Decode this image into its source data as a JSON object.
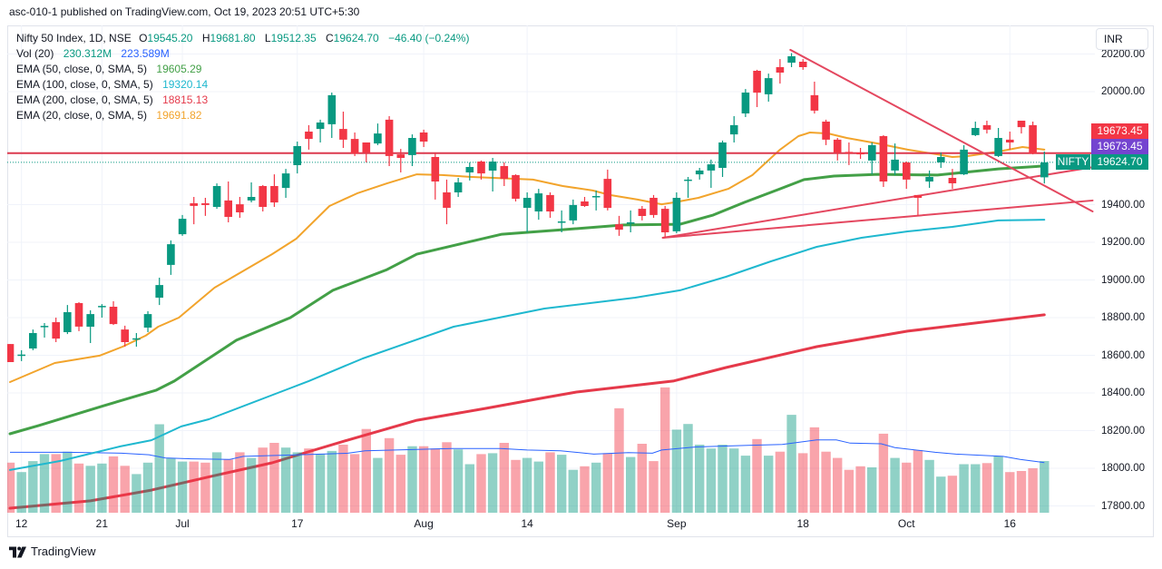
{
  "header": {
    "publish_text": "asc-010-1 published on TradingView.com, Oct 19, 2023 20:51 UTC+5:30"
  },
  "legend": {
    "ohlc": [
      {
        "k": "O",
        "v": "19545.20"
      },
      {
        "k": "H",
        "v": "19681.80"
      },
      {
        "k": "L",
        "v": "19512.35"
      },
      {
        "k": "C",
        "v": "19624.70"
      }
    ],
    "change": "−46.40 (−0.24%)"
  },
  "currency": "INR",
  "footer": {
    "brand": "TradingView",
    "logo_icon": "tradingview-logo"
  },
  "chart_data": {
    "type": "candlestick",
    "title": "Nifty 50 Index, 1D, NSE",
    "xlabel": "",
    "ylabel": "",
    "ylim": [
      17764,
      20342
    ],
    "grid": true,
    "x_ticks": [
      {
        "label": "12",
        "index": 1
      },
      {
        "label": "21",
        "index": 8
      },
      {
        "label": "Jul",
        "index": 15
      },
      {
        "label": "17",
        "index": 25
      },
      {
        "label": "Aug",
        "index": 36
      },
      {
        "label": "14",
        "index": 45
      },
      {
        "label": "Sep",
        "index": 58
      },
      {
        "label": "18",
        "index": 69
      },
      {
        "label": "Oct",
        "index": 78
      },
      {
        "label": "16",
        "index": 87
      }
    ],
    "y_ticks": [
      "20200.00",
      "20000.00",
      "19400.00",
      "19200.00",
      "19000.00",
      "18800.00",
      "18600.00",
      "18400.00",
      "18200.00",
      "18000.00",
      "17800.00"
    ],
    "colors": {
      "up": "#089981",
      "down": "#f23645",
      "volume_up": "rgba(8,153,129,0.45)",
      "volume_down": "rgba(242,54,69,0.45)",
      "volume_ma": "#2962ff",
      "last_price_line": "#089981"
    },
    "candles_format": [
      "open",
      "high",
      "low",
      "close"
    ],
    "candles": [
      [
        18660,
        18660,
        18564,
        18564
      ],
      [
        18600,
        18627,
        18569,
        18604
      ],
      [
        18636,
        18737,
        18627,
        18718
      ],
      [
        18750,
        18771,
        18694,
        18756
      ],
      [
        18776,
        18800,
        18670,
        18689
      ],
      [
        18723,
        18867,
        18713,
        18829
      ],
      [
        18877,
        18882,
        18728,
        18752
      ],
      [
        18752,
        18839,
        18665,
        18819
      ],
      [
        18858,
        18872,
        18800,
        18862
      ],
      [
        18858,
        18887,
        18761,
        18766
      ],
      [
        18737,
        18757,
        18646,
        18670
      ],
      [
        18685,
        18718,
        18646,
        18690
      ],
      [
        18747,
        18834,
        18723,
        18819
      ],
      [
        18906,
        19012,
        18867,
        18973
      ],
      [
        19080,
        19210,
        19027,
        19190
      ],
      [
        19243,
        19345,
        19234,
        19325
      ],
      [
        19407,
        19441,
        19296,
        19393
      ],
      [
        19407,
        19436,
        19340,
        19398
      ],
      [
        19388,
        19513,
        19378,
        19499
      ],
      [
        19422,
        19523,
        19306,
        19335
      ],
      [
        19402,
        19441,
        19330,
        19359
      ],
      [
        19422,
        19518,
        19412,
        19441
      ],
      [
        19499,
        19504,
        19364,
        19388
      ],
      [
        19499,
        19561,
        19388,
        19412
      ],
      [
        19489,
        19590,
        19436,
        19566
      ],
      [
        19610,
        19735,
        19566,
        19711
      ],
      [
        19788,
        19822,
        19692,
        19749
      ],
      [
        19802,
        19851,
        19730,
        19836
      ],
      [
        19827,
        19995,
        19754,
        19981
      ],
      [
        19802,
        19894,
        19701,
        19745
      ],
      [
        19749,
        19783,
        19658,
        19672
      ],
      [
        19730,
        19730,
        19624,
        19677
      ],
      [
        19725,
        19831,
        19716,
        19778
      ],
      [
        19851,
        19870,
        19605,
        19658
      ],
      [
        19667,
        19696,
        19571,
        19648
      ],
      [
        19663,
        19773,
        19605,
        19754
      ],
      [
        19783,
        19798,
        19706,
        19735
      ],
      [
        19653,
        19672,
        19427,
        19523
      ],
      [
        19465,
        19533,
        19296,
        19383
      ],
      [
        19465,
        19542,
        19441,
        19518
      ],
      [
        19571,
        19624,
        19528,
        19600
      ],
      [
        19629,
        19634,
        19533,
        19566
      ],
      [
        19581,
        19648,
        19470,
        19629
      ],
      [
        19605,
        19624,
        19499,
        19537
      ],
      [
        19557,
        19561,
        19417,
        19431
      ],
      [
        19383,
        19465,
        19253,
        19436
      ],
      [
        19364,
        19484,
        19320,
        19460
      ],
      [
        19451,
        19465,
        19330,
        19364
      ],
      [
        19306,
        19369,
        19253,
        19311
      ],
      [
        19316,
        19427,
        19296,
        19398
      ],
      [
        19417,
        19441,
        19388,
        19393
      ],
      [
        19441,
        19475,
        19369,
        19446
      ],
      [
        19537,
        19586,
        19369,
        19383
      ],
      [
        19296,
        19340,
        19234,
        19267
      ],
      [
        19301,
        19369,
        19253,
        19306
      ],
      [
        19378,
        19393,
        19316,
        19340
      ],
      [
        19436,
        19451,
        19330,
        19345
      ],
      [
        19378,
        19393,
        19224,
        19253
      ],
      [
        19258,
        19465,
        19248,
        19436
      ],
      [
        19528,
        19547,
        19436,
        19533
      ],
      [
        19561,
        19595,
        19533,
        19581
      ],
      [
        19581,
        19639,
        19489,
        19614
      ],
      [
        19595,
        19740,
        19547,
        19730
      ],
      [
        19773,
        19870,
        19730,
        19822
      ],
      [
        19884,
        20014,
        19865,
        19995
      ],
      [
        20111,
        20116,
        19918,
        19995
      ],
      [
        19986,
        20096,
        19947,
        20072
      ],
      [
        20130,
        20173,
        20043,
        20101
      ],
      [
        20154,
        20205,
        20130,
        20188
      ],
      [
        20159,
        20173,
        20116,
        20130
      ],
      [
        19981,
        20053,
        19884,
        19899
      ],
      [
        19841,
        19851,
        19716,
        19745
      ],
      [
        19745,
        19754,
        19634,
        19677
      ],
      [
        19680,
        19730,
        19610,
        19675
      ],
      [
        19677,
        19701,
        19643,
        19667
      ],
      [
        19634,
        19730,
        19561,
        19716
      ],
      [
        19764,
        19769,
        19494,
        19523
      ],
      [
        19581,
        19725,
        19557,
        19639
      ],
      [
        19624,
        19629,
        19484,
        19533
      ],
      [
        19451,
        19451,
        19340,
        19436
      ],
      [
        19523,
        19581,
        19489,
        19547
      ],
      [
        19624,
        19677,
        19595,
        19653
      ],
      [
        19542,
        19590,
        19484,
        19513
      ],
      [
        19561,
        19716,
        19557,
        19692
      ],
      [
        19769,
        19841,
        19764,
        19807
      ],
      [
        19822,
        19846,
        19778,
        19798
      ],
      [
        19658,
        19807,
        19653,
        19754
      ],
      [
        19745,
        19788,
        19692,
        19730
      ],
      [
        19846,
        19846,
        19778,
        19812
      ],
      [
        19822,
        19841,
        19667,
        19671.1
      ],
      [
        19545.2,
        19681.8,
        19512.35,
        19624.7
      ]
    ],
    "volume_unit": "M",
    "volume": [
      223,
      181,
      230,
      261,
      261,
      272,
      219,
      209,
      219,
      251,
      209,
      172,
      223,
      394,
      244,
      228,
      228,
      223,
      269,
      237,
      269,
      244,
      290,
      311,
      290,
      269,
      286,
      261,
      275,
      303,
      261,
      373,
      244,
      332,
      258,
      296,
      296,
      286,
      314,
      282,
      216,
      261,
      265,
      311,
      235,
      244,
      228,
      269,
      258,
      191,
      207,
      223,
      265,
      465,
      248,
      307,
      230,
      558,
      370,
      395,
      303,
      286,
      303,
      286,
      254,
      328,
      254,
      272,
      436,
      265,
      380,
      272,
      244,
      191,
      207,
      202,
      352,
      244,
      223,
      279,
      235,
      161,
      165,
      216,
      216,
      221,
      251,
      181,
      186,
      198,
      230.312
    ],
    "volume_legend": {
      "label": "Vol (20)",
      "value": "230.312M",
      "ma_value": "223.589M"
    },
    "volume_ma": [
      [
        0,
        269
      ],
      [
        5,
        269
      ],
      [
        9.7,
        265
      ],
      [
        12.1,
        258
      ],
      [
        13.5,
        244
      ],
      [
        15.8,
        240
      ],
      [
        19.1,
        237
      ],
      [
        20.3,
        251
      ],
      [
        25.2,
        258
      ],
      [
        29.4,
        265
      ],
      [
        30.9,
        276
      ],
      [
        35.4,
        282
      ],
      [
        38.4,
        286
      ],
      [
        42.7,
        286
      ],
      [
        45,
        279
      ],
      [
        47.9,
        276
      ],
      [
        50.8,
        261
      ],
      [
        53.8,
        268
      ],
      [
        55.9,
        265
      ],
      [
        56.7,
        279
      ],
      [
        59.7,
        293
      ],
      [
        64.2,
        300
      ],
      [
        67.2,
        304
      ],
      [
        68.7,
        314
      ],
      [
        70.2,
        324
      ],
      [
        71.9,
        324
      ],
      [
        73.1,
        310
      ],
      [
        75.8,
        307
      ],
      [
        77,
        290
      ],
      [
        80.5,
        269
      ],
      [
        82.3,
        261
      ],
      [
        86.4,
        251
      ],
      [
        87.9,
        237
      ],
      [
        90,
        223.589
      ]
    ],
    "ema": [
      {
        "label": "EMA (50, close, 0, SMA, 5)",
        "value": "19605.29",
        "color": "#43a047",
        "points": [
          [
            0,
            18183
          ],
          [
            2.5,
            18227
          ],
          [
            8.2,
            18333
          ],
          [
            12.7,
            18414
          ],
          [
            14.3,
            18463
          ],
          [
            19.7,
            18680
          ],
          [
            24.4,
            18800
          ],
          [
            28.1,
            18945
          ],
          [
            32.8,
            19055
          ],
          [
            35.4,
            19137
          ],
          [
            38.8,
            19186
          ],
          [
            42.8,
            19243
          ],
          [
            48.1,
            19267
          ],
          [
            53.4,
            19292
          ],
          [
            58.3,
            19296
          ],
          [
            61.2,
            19345
          ],
          [
            63.9,
            19412
          ],
          [
            67,
            19484
          ],
          [
            69.1,
            19533
          ],
          [
            71.7,
            19552
          ],
          [
            75.5,
            19561
          ],
          [
            80.7,
            19557
          ],
          [
            86,
            19590
          ],
          [
            90,
            19605.29
          ]
        ]
      },
      {
        "label": "EMA (100, close, 0, SMA, 5)",
        "value": "19320.14",
        "color": "#1fb8cf",
        "points": [
          [
            0,
            17991
          ],
          [
            4.4,
            18039
          ],
          [
            9.6,
            18116
          ],
          [
            12.3,
            18149
          ],
          [
            14.9,
            18222
          ],
          [
            17.3,
            18260
          ],
          [
            23.3,
            18400
          ],
          [
            26,
            18463
          ],
          [
            30.7,
            18583
          ],
          [
            38.6,
            18752
          ],
          [
            46.5,
            18848
          ],
          [
            54.4,
            18906
          ],
          [
            58.3,
            18945
          ],
          [
            62.3,
            19017
          ],
          [
            66.2,
            19099
          ],
          [
            70.2,
            19176
          ],
          [
            74.1,
            19224
          ],
          [
            78.1,
            19258
          ],
          [
            82,
            19282
          ],
          [
            86,
            19316
          ],
          [
            90,
            19320.14
          ]
        ]
      },
      {
        "label": "EMA (200, close, 0, SMA, 5)",
        "value": "18815.13",
        "color": "#e5394a",
        "points": [
          [
            0,
            17788
          ],
          [
            7,
            17827
          ],
          [
            12.3,
            17884
          ],
          [
            17.5,
            17957
          ],
          [
            22.8,
            18029
          ],
          [
            25.4,
            18077
          ],
          [
            29.4,
            18150
          ],
          [
            35.4,
            18255
          ],
          [
            41.4,
            18318
          ],
          [
            46.6,
            18376
          ],
          [
            49.3,
            18405
          ],
          [
            57.7,
            18463
          ],
          [
            62.3,
            18535
          ],
          [
            70.2,
            18646
          ],
          [
            78.1,
            18728
          ],
          [
            90,
            18815.13
          ]
        ]
      },
      {
        "label": "EMA (20, close, 0, SMA, 5)",
        "value": "19691.82",
        "color": "#f2a42c",
        "points": [
          [
            0,
            18458
          ],
          [
            3.9,
            18559
          ],
          [
            7.8,
            18598
          ],
          [
            9.8,
            18646
          ],
          [
            11.8,
            18704
          ],
          [
            12.9,
            18752
          ],
          [
            14.7,
            18800
          ],
          [
            17.8,
            18959
          ],
          [
            22.8,
            19137
          ],
          [
            24.9,
            19219
          ],
          [
            27.8,
            19393
          ],
          [
            30.2,
            19460
          ],
          [
            32.8,
            19513
          ],
          [
            35.4,
            19561
          ],
          [
            37.6,
            19557
          ],
          [
            40.2,
            19547
          ],
          [
            45.5,
            19533
          ],
          [
            48.1,
            19499
          ],
          [
            50.7,
            19475
          ],
          [
            52.2,
            19451
          ],
          [
            54.6,
            19427
          ],
          [
            56.7,
            19402
          ],
          [
            57.8,
            19412
          ],
          [
            59.9,
            19436
          ],
          [
            62.5,
            19484
          ],
          [
            64.6,
            19557
          ],
          [
            67,
            19692
          ],
          [
            68.6,
            19764
          ],
          [
            69.6,
            19783
          ],
          [
            71.2,
            19778
          ],
          [
            72.8,
            19754
          ],
          [
            75.5,
            19725
          ],
          [
            78.1,
            19692
          ],
          [
            80.7,
            19667
          ],
          [
            82,
            19653
          ],
          [
            83.3,
            19658
          ],
          [
            86,
            19682
          ],
          [
            88.1,
            19706
          ],
          [
            90,
            19691.82
          ]
        ]
      }
    ],
    "drawings": {
      "horizontal_line": {
        "price": 19673.45,
        "color": "#dc3a4f"
      },
      "trendline_color": "#e4475f",
      "trendlines": [
        {
          "from": [
            67.9,
            20222
          ],
          "to": [
            94.2,
            19364
          ]
        },
        {
          "from": [
            56.8,
            19224
          ],
          "to": [
            94.2,
            19599
          ]
        },
        {
          "from": [
            56.8,
            19224
          ],
          "to": [
            94.2,
            19422
          ]
        }
      ]
    },
    "last_price": 19624.7,
    "price_tags": [
      {
        "value": "19673.45",
        "color": "#f23645"
      },
      {
        "value": "19673.45",
        "color": "#7444d0"
      },
      {
        "value": "19624.70",
        "color": "#089981",
        "symbol": "NIFTY"
      }
    ]
  }
}
